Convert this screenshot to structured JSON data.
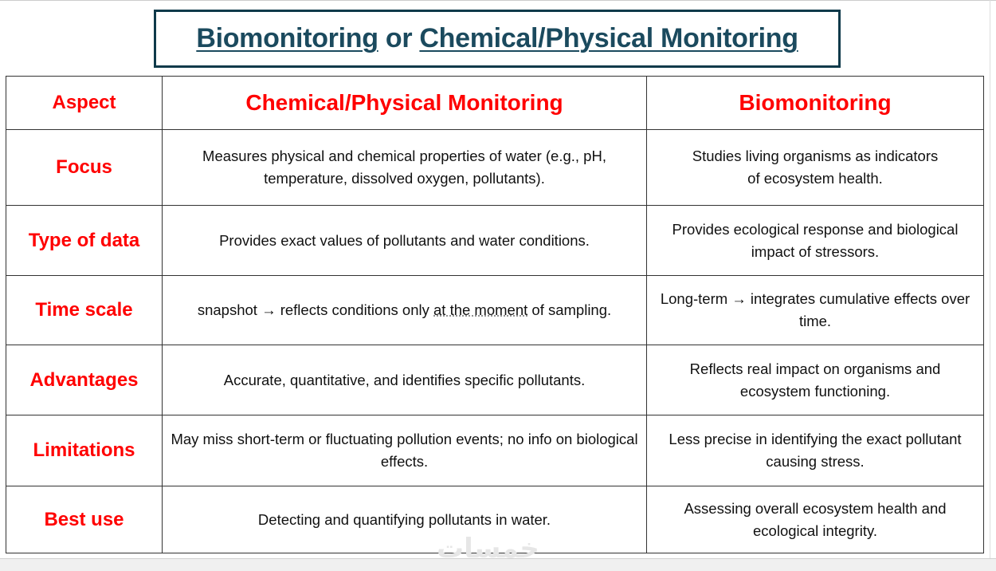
{
  "title": {
    "part1": "Biomonitoring",
    "connector": " or ",
    "part2": "Chemical/Physical Monitoring"
  },
  "table": {
    "headers": [
      "Aspect",
      "Chemical/Physical Monitoring",
      "Biomonitoring"
    ],
    "rows": [
      {
        "aspect": "Focus",
        "chemical": "Measures physical and chemical properties of water (e.g., pH, temperature, dissolved oxygen, pollutants).",
        "bio": "Studies living organisms as indicators of ecosystem health."
      },
      {
        "aspect": "Type of data",
        "chemical": "Provides exact values of pollutants and water conditions.",
        "bio": "Provides ecological response and biological impact of stressors."
      },
      {
        "aspect": "Time scale",
        "chemical_a": "snapshot → reflects conditions only ",
        "chemical_b": "at the moment",
        "chemical_c": " of sampling.",
        "bio": "Long-term → integrates cumulative effects over time."
      },
      {
        "aspect": "Advantages",
        "chemical": "Accurate, quantitative, and identifies specific pollutants.",
        "bio": "Reflects real impact on organisms and ecosystem functioning."
      },
      {
        "aspect": "Limitations",
        "chemical": "May miss short-term or fluctuating pollution events; no info on biological effects.",
        "bio": "Less precise in identifying the exact pollutant causing stress."
      },
      {
        "aspect": "Best use",
        "chemical": "Detecting and quantifying pollutants in water.",
        "bio": "Assessing overall ecosystem health and ecological integrity."
      }
    ]
  },
  "watermark": "خمسات",
  "colors": {
    "title": "#1b4a5e",
    "title_border": "#0f3a4a",
    "accent": "#ff0000"
  }
}
